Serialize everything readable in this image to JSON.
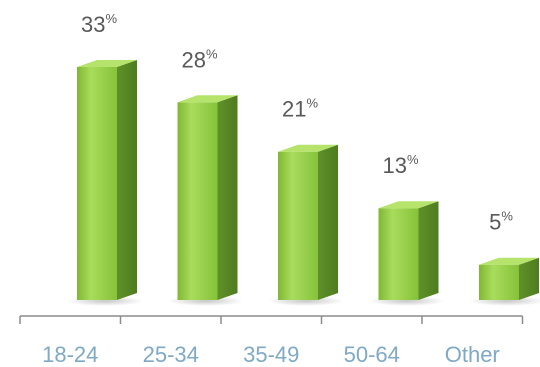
{
  "chart_data": {
    "type": "bar",
    "categories": [
      "18-24",
      "25-34",
      "35-49",
      "50-64",
      "Other"
    ],
    "values": [
      33,
      28,
      21,
      13,
      5
    ],
    "value_labels": [
      "33",
      "28",
      "21",
      "13",
      "5"
    ],
    "value_unit": "%",
    "ylim": [
      0,
      33
    ],
    "grid": false,
    "title": "",
    "xlabel": "",
    "ylabel": "",
    "style": "3d-bar",
    "colors": {
      "bar_front": "#8cc63f",
      "bar_front_light": "#a9dc5c",
      "bar_side": "#5a8a23",
      "bar_top": "#b5e36b",
      "axis": "#8c8c8c",
      "value_text": "#595959",
      "category_text": "#7fa9c4"
    }
  }
}
